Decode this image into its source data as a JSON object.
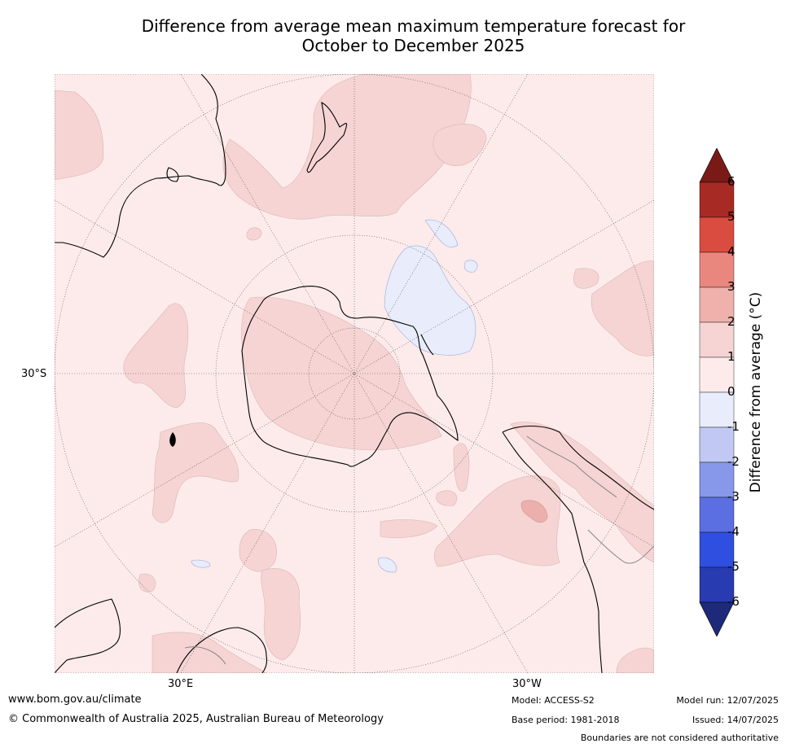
{
  "title_line1": "Difference from average mean maximum temperature forecast for",
  "title_line2": "October to December 2025",
  "map": {
    "lat_label": "30°S",
    "lon_labels": [
      "30°E",
      "30°W"
    ],
    "colors": {
      "background_0_1": "#fcebea",
      "band_1_2": "#f5d4d3",
      "band_2_3": "#edafab",
      "band_neg1_0": "#e8ecfb",
      "coast": "#000000"
    }
  },
  "colorbar": {
    "label": "Difference from average (°C)",
    "ticks": [
      "6",
      "5",
      "4",
      "3",
      "2",
      "1",
      "0",
      "-1",
      "-2",
      "-3",
      "-4",
      "-5",
      "-6"
    ],
    "colors": [
      "#7a1a17",
      "#a82a24",
      "#d94c3f",
      "#e9877e",
      "#efb1ab",
      "#f5d4d3",
      "#fcebea",
      "#e8ecfb",
      "#c0c8f3",
      "#8797ea",
      "#5b6fe3",
      "#2f4fe0",
      "#283bb0",
      "#1d2a7a"
    ]
  },
  "footer": {
    "url": "www.bom.gov.au/climate",
    "copyright": "© Commonwealth of Australia 2025, Australian Bureau of Meteorology",
    "model": "Model: ACCESS-S2",
    "base_period": "Base period: 1981-2018",
    "model_run": "Model run: 12/07/2025",
    "issued": "Issued: 14/07/2025",
    "disclaimer": "Boundaries are not considered authoritative"
  }
}
